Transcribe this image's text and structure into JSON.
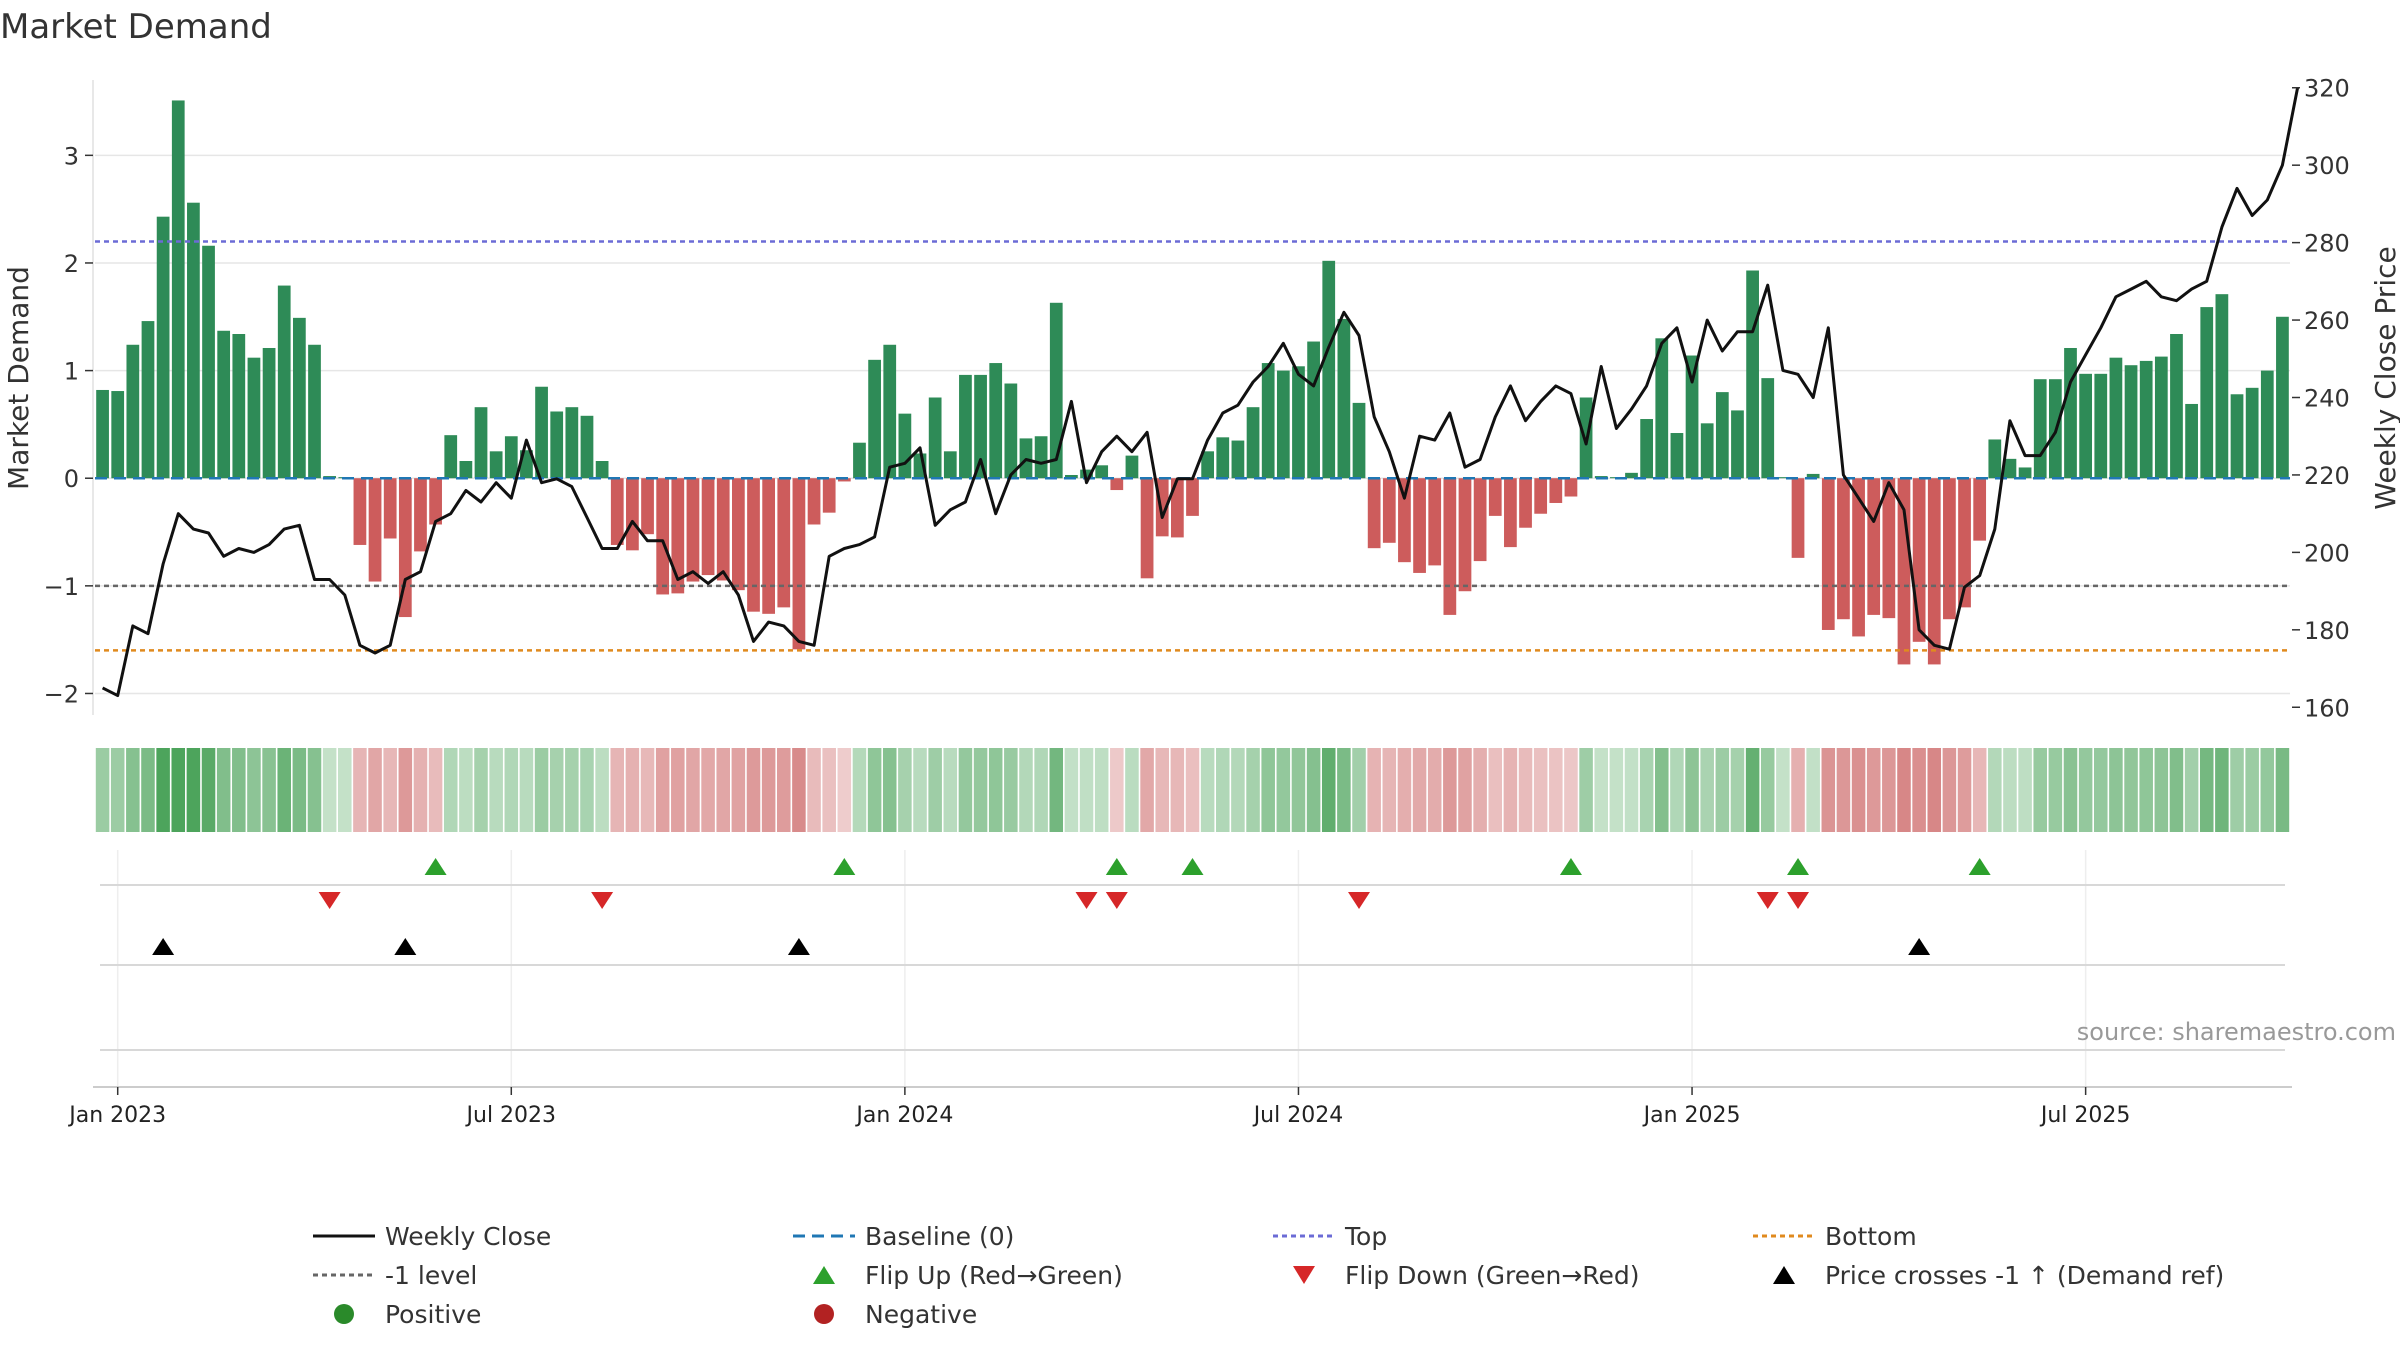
{
  "chart_data": {
    "type": "bar",
    "title": "Market Demand",
    "ylabel": "Market Demand",
    "y2label": "Weekly Close Price",
    "ylim": [
      -2.2,
      3.7
    ],
    "y2lim": [
      158,
      322
    ],
    "yticks": [
      -2,
      -1,
      0,
      1,
      2,
      3
    ],
    "y2ticks": [
      160,
      180,
      200,
      220,
      240,
      260,
      280,
      300,
      320
    ],
    "x_start_week": -1,
    "xticks": [
      {
        "label": "Jan 2023",
        "week": 0
      },
      {
        "label": "Jul 2023",
        "week": 26
      },
      {
        "label": "Jan 2024",
        "week": 52
      },
      {
        "label": "Jul 2024",
        "week": 78
      },
      {
        "label": "Jan 2025",
        "week": 104
      },
      {
        "label": "Jul 2025",
        "week": 130
      }
    ],
    "reference_lines": {
      "top": 2.2,
      "bottom": -1.6,
      "level": -1,
      "baseline": 0
    },
    "demand": [
      0.82,
      0.81,
      1.24,
      1.46,
      2.43,
      3.51,
      2.56,
      2.16,
      1.37,
      1.34,
      1.12,
      1.21,
      1.79,
      1.49,
      1.24,
      0.02,
      0.01,
      -0.62,
      -0.96,
      -0.56,
      -1.29,
      -0.68,
      -0.43,
      0.4,
      0.16,
      0.66,
      0.25,
      0.39,
      0.26,
      0.85,
      0.62,
      0.66,
      0.58,
      0.16,
      -0.62,
      -0.67,
      -0.52,
      -1.08,
      -1.07,
      -0.96,
      -0.9,
      -0.95,
      -1.04,
      -1.24,
      -1.26,
      -1.2,
      -1.59,
      -0.43,
      -0.32,
      -0.03,
      0.33,
      1.1,
      1.24,
      0.6,
      0.23,
      0.75,
      0.25,
      0.96,
      0.96,
      1.07,
      0.88,
      0.37,
      0.39,
      1.63,
      0.03,
      0.08,
      0.12,
      -0.11,
      0.21,
      -0.93,
      -0.54,
      -0.55,
      -0.35,
      0.25,
      0.38,
      0.35,
      0.66,
      1.07,
      1.0,
      1.04,
      1.27,
      2.02,
      1.48,
      0.7,
      -0.65,
      -0.6,
      -0.78,
      -0.88,
      -0.81,
      -1.27,
      -1.05,
      -0.77,
      -0.35,
      -0.64,
      -0.46,
      -0.33,
      -0.23,
      -0.17,
      0.75,
      0.02,
      0.01,
      0.05,
      0.55,
      1.3,
      0.42,
      1.14,
      0.51,
      0.8,
      0.63,
      1.93,
      0.93,
      0.01,
      -0.74,
      0.04,
      -1.41,
      -1.31,
      -1.47,
      -1.27,
      -1.3,
      -1.73,
      -1.52,
      -1.73,
      -1.31,
      -1.2,
      -0.58,
      0.36,
      0.18,
      0.1,
      0.92,
      0.92,
      1.21,
      0.97,
      0.97,
      1.12,
      1.05,
      1.09,
      1.13,
      1.34,
      0.69,
      1.59,
      1.71,
      0.78,
      0.84,
      1.0,
      1.5
    ],
    "close": [
      165,
      163,
      181,
      179,
      197,
      210,
      206,
      205,
      199,
      201,
      200,
      202,
      206,
      207,
      193,
      193,
      189,
      176,
      174,
      176,
      193,
      195,
      208,
      210,
      216,
      213,
      218,
      214,
      229,
      218,
      219,
      217,
      209,
      201,
      201,
      208,
      203,
      203,
      193,
      195,
      192,
      195,
      189,
      177,
      182,
      181,
      177,
      176,
      199,
      201,
      202,
      204,
      222,
      223,
      227,
      207,
      211,
      213,
      224,
      210,
      220,
      224,
      223,
      224,
      239,
      218,
      226,
      230,
      226,
      231,
      209,
      219,
      219,
      229,
      236,
      238,
      244,
      248,
      254,
      246,
      243,
      253,
      262,
      256,
      235,
      226,
      214,
      230,
      229,
      236,
      222,
      224,
      235,
      243,
      234,
      239,
      243,
      241,
      228,
      248,
      232,
      237,
      243,
      254,
      258,
      244,
      260,
      252,
      257,
      257,
      269,
      247,
      246,
      240,
      258,
      220,
      214,
      208,
      218,
      211,
      180,
      176,
      175,
      191,
      194,
      206,
      234,
      225,
      225,
      231,
      244,
      251,
      258,
      266,
      268,
      270,
      266,
      265,
      268,
      270,
      284,
      294,
      287,
      291,
      300,
      320
    ],
    "series": [
      {
        "name": "Weekly Close",
        "color": "#111111",
        "style": "solid"
      },
      {
        "name": "Baseline (0)",
        "color": "#1f77b4",
        "style": "dashed"
      },
      {
        "name": "Top",
        "color": "#6b6bd6",
        "style": "dotted"
      },
      {
        "name": "Bottom",
        "color": "#e08a1e",
        "style": "dotted"
      },
      {
        "name": "-1 level",
        "color": "#666666",
        "style": "dotted"
      }
    ],
    "flip_up_weeks": [
      21,
      48,
      66,
      71,
      96,
      111,
      123
    ],
    "flip_down_weeks": [
      14,
      32,
      64,
      66,
      82,
      109,
      111
    ],
    "price_cross_weeks": [
      3,
      19,
      45,
      119
    ]
  },
  "legend": [
    {
      "label": "Weekly Close",
      "marker": "line-solid",
      "color": "#111111"
    },
    {
      "label": "Baseline (0)",
      "marker": "line-dashed",
      "color": "#1f77b4"
    },
    {
      "label": "Top",
      "marker": "line-dotted",
      "color": "#6b6bd6"
    },
    {
      "label": "Bottom",
      "marker": "line-dotted",
      "color": "#e08a1e"
    },
    {
      "label": "-1 level",
      "marker": "line-dotted",
      "color": "#666666"
    },
    {
      "label": "Flip Up (Red→Green)",
      "marker": "triangle-up",
      "color": "#2ca02c"
    },
    {
      "label": "Flip Down (Green→Red)",
      "marker": "triangle-down",
      "color": "#d62728"
    },
    {
      "label": "Price crosses -1 ↑ (Demand ref)",
      "marker": "triangle-up",
      "color": "#000000"
    },
    {
      "label": "Positive",
      "marker": "circle",
      "color": "#2a8a2a"
    },
    {
      "label": "Negative",
      "marker": "circle",
      "color": "#b22222"
    }
  ],
  "source": "source: sharemaestro.com",
  "colors": {
    "positive": "#2e8b57",
    "negative": "#cd5c5c",
    "grid": "#e5e5e5"
  }
}
